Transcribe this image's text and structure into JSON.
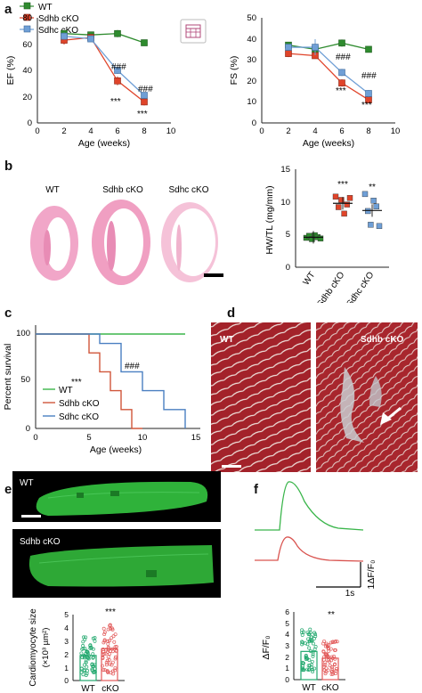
{
  "panels": {
    "a": "a",
    "b": "b",
    "c": "c",
    "d": "d",
    "e": "e",
    "f": "f"
  },
  "colors": {
    "wt": "#2e8b2e",
    "sdhb": "#e0442a",
    "sdhc": "#6f9fd6",
    "wt_cell": "#22a86e",
    "ko_cell": "#e25a5a",
    "trace_wt": "#39b54a",
    "trace_ko": "#d9534f"
  },
  "panel_a": {
    "legend": [
      "WT",
      "Sdhb cKO",
      "Sdhc cKO"
    ],
    "ef": {
      "ylabel": "EF (%)",
      "xlabel": "Age (weeks)",
      "yticks": [
        "0",
        "20",
        "40",
        "60",
        "80"
      ],
      "xticks": [
        "0",
        "2",
        "4",
        "6",
        "8",
        "10"
      ],
      "annotations": [
        "###",
        "###",
        "***",
        "***"
      ]
    },
    "fs": {
      "ylabel": "FS (%)",
      "xlabel": "Age (weeks)",
      "yticks": [
        "0",
        "10",
        "20",
        "30",
        "40",
        "50"
      ],
      "xticks": [
        "0",
        "2",
        "4",
        "6",
        "8",
        "10"
      ],
      "annotations": [
        "###",
        "###",
        "***",
        "***"
      ]
    }
  },
  "panel_b": {
    "heart_labels": [
      "WT",
      "Sdhb cKO",
      "Sdhc cKO"
    ],
    "ylabel": "HW/TL (mg/mm)",
    "yticks": [
      "0",
      "5",
      "10",
      "15"
    ],
    "xticks": [
      "WT",
      "Sdhb cKO",
      "Sdhc cKO"
    ],
    "annotations": [
      "***",
      "**"
    ]
  },
  "panel_c": {
    "ylabel": "Percent survival",
    "xlabel": "Age (weeks)",
    "yticks": [
      "0",
      "50",
      "100"
    ],
    "xticks": [
      "0",
      "5",
      "10",
      "15"
    ],
    "legend": [
      "WT",
      "Sdhb cKO",
      "Sdhc cKO"
    ],
    "annotations": [
      "***",
      "###"
    ]
  },
  "panel_d": {
    "labels": [
      "WT",
      "Sdhb cKO"
    ]
  },
  "panel_e": {
    "labels": [
      "WT",
      "Sdhb cKO"
    ],
    "ylabel_line1": "Cardiomyocyte size",
    "ylabel_line2": "(×10³ µm²)",
    "yticks": [
      "0",
      "1",
      "2",
      "3",
      "4",
      "5"
    ],
    "xticks": [
      "WT",
      "cKO"
    ],
    "annotation": "***"
  },
  "panel_f": {
    "scale_y": "1ΔF/F₀",
    "scale_x": "1s",
    "ylabel": "ΔF/F₀",
    "yticks": [
      "0",
      "1",
      "2",
      "3",
      "4",
      "5",
      "6"
    ],
    "xticks": [
      "WT",
      "cKO"
    ],
    "annotation": "**"
  },
  "chart_data": [
    {
      "type": "line",
      "panel": "a-left",
      "ylabel": "EF (%)",
      "xlabel": "Age (weeks)",
      "xlim": [
        0,
        10
      ],
      "ylim": [
        0,
        80
      ],
      "x": [
        2,
        4,
        6,
        8
      ],
      "series": [
        {
          "name": "WT",
          "values": [
            68,
            67,
            68,
            61
          ]
        },
        {
          "name": "Sdhb cKO",
          "values": [
            63,
            65,
            32,
            16
          ]
        },
        {
          "name": "Sdhc cKO",
          "values": [
            66,
            64,
            40,
            21
          ]
        }
      ]
    },
    {
      "type": "line",
      "panel": "a-right",
      "ylabel": "FS (%)",
      "xlabel": "Age (weeks)",
      "xlim": [
        0,
        10
      ],
      "ylim": [
        0,
        50
      ],
      "x": [
        2,
        4,
        6,
        8
      ],
      "series": [
        {
          "name": "WT",
          "values": [
            37,
            35,
            38,
            35
          ]
        },
        {
          "name": "Sdhb cKO",
          "values": [
            33,
            32,
            19,
            11
          ]
        },
        {
          "name": "Sdhc cKO",
          "values": [
            36,
            36,
            24,
            14
          ]
        }
      ]
    },
    {
      "type": "scatter",
      "panel": "b",
      "ylabel": "HW/TL (mg/mm)",
      "ylim": [
        0,
        15
      ],
      "categories": [
        "WT",
        "Sdhb cKO",
        "Sdhc cKO"
      ],
      "series": [
        {
          "name": "WT",
          "values": [
            4.5,
            4.8,
            4.3,
            4.9,
            4.6,
            4.4
          ]
        },
        {
          "name": "Sdhb cKO",
          "values": [
            10.8,
            9.2,
            10.3,
            8.2,
            9.6,
            10.6
          ]
        },
        {
          "name": "Sdhc cKO",
          "values": [
            11.2,
            8.6,
            6.5,
            10.2,
            9.3,
            6.3
          ]
        }
      ]
    },
    {
      "type": "line",
      "panel": "c",
      "ylabel": "Percent survival",
      "xlabel": "Age (weeks)",
      "xlim": [
        0,
        15
      ],
      "ylim": [
        0,
        100
      ],
      "series": [
        {
          "name": "WT",
          "x": [
            0,
            14
          ],
          "values": [
            100,
            100
          ]
        },
        {
          "name": "Sdhb cKO",
          "x": [
            0,
            5,
            5,
            6,
            6,
            7,
            7,
            8,
            8,
            9,
            9,
            10
          ],
          "values": [
            100,
            100,
            80,
            80,
            60,
            60,
            40,
            40,
            20,
            20,
            0,
            0
          ]
        },
        {
          "name": "Sdhc cKO",
          "x": [
            0,
            6,
            6,
            8,
            8,
            10,
            10,
            12,
            12,
            14,
            14
          ],
          "values": [
            100,
            100,
            90,
            90,
            60,
            60,
            40,
            40,
            20,
            20,
            0
          ]
        }
      ]
    },
    {
      "type": "bar",
      "panel": "e",
      "categories": [
        "WT",
        "cKO"
      ],
      "values": [
        1.9,
        2.4
      ],
      "ylim": [
        0,
        5
      ]
    },
    {
      "type": "bar",
      "panel": "f",
      "categories": [
        "WT",
        "cKO"
      ],
      "values": [
        2.5,
        1.9
      ],
      "ylim": [
        0,
        6
      ]
    }
  ]
}
